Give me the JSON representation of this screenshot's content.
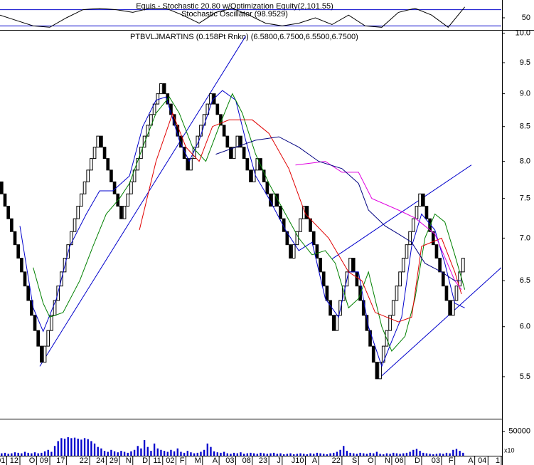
{
  "chart_data": [
    {
      "type": "line",
      "title": "Equis - Stochastic 20.80  w/Optimization Equity(2,101.55)",
      "subtitle": "Stochastic Oscillator (98.9529)",
      "xlim": [
        0,
        151
      ],
      "ylim": [
        0,
        100
      ],
      "yticks": [
        50
      ],
      "levels": [
        20,
        80
      ],
      "level_color": "#0000cc",
      "color": "#000000",
      "x": [
        0,
        5,
        10,
        15,
        20,
        25,
        30,
        35,
        40,
        45,
        50,
        55,
        60,
        65,
        70,
        75,
        80,
        85,
        90,
        95,
        100,
        105,
        110,
        115,
        120,
        125,
        130,
        135,
        140
      ],
      "values": [
        60,
        40,
        20,
        15,
        50,
        80,
        85,
        80,
        70,
        85,
        85,
        60,
        30,
        70,
        85,
        60,
        30,
        20,
        30,
        50,
        25,
        60,
        20,
        15,
        70,
        85,
        60,
        15,
        90
      ]
    },
    {
      "type": "renko",
      "title": "PTBVLJMARTINS (0.158Pt Rnko)  (6.5800,6.7500,6.5500,6.7500)",
      "log": true,
      "xlim": [
        0,
        151
      ],
      "ylim": [
        5.15,
        10.02
      ],
      "yticks": [
        {
          "value": 10,
          "label": "10.0"
        },
        {
          "value": 9.5,
          "label": "9.5"
        },
        {
          "value": 9,
          "label": "9.0"
        },
        {
          "value": 8.5,
          "label": "8.5"
        },
        {
          "value": 8,
          "label": "8.0"
        },
        {
          "value": 7.5,
          "label": "7.5"
        },
        {
          "value": 7,
          "label": "7.0"
        },
        {
          "value": 6.5,
          "label": "6.5"
        },
        {
          "value": 6,
          "label": "6.0"
        },
        {
          "value": 5.5,
          "label": "5.5"
        }
      ],
      "up_color": "#ffffff",
      "down_color": "#000000",
      "open": 7.72,
      "values": [
        7.56,
        7.4,
        7.24,
        7.08,
        6.92,
        6.76,
        6.6,
        6.44,
        6.28,
        6.12,
        5.96,
        5.8,
        5.64,
        5.8,
        5.96,
        6.12,
        6.28,
        6.44,
        6.6,
        6.76,
        6.92,
        7.08,
        7.24,
        7.4,
        7.56,
        7.72,
        7.88,
        8.04,
        8.2,
        8.36,
        8.2,
        8.04,
        7.88,
        7.72,
        7.56,
        7.4,
        7.24,
        7.4,
        7.56,
        7.72,
        7.88,
        8.04,
        8.2,
        8.36,
        8.52,
        8.68,
        8.84,
        9.0,
        9.16,
        9.0,
        8.84,
        8.68,
        8.52,
        8.36,
        8.2,
        8.04,
        7.88,
        8.04,
        8.2,
        8.36,
        8.52,
        8.68,
        8.84,
        9.0,
        8.84,
        8.68,
        8.52,
        8.36,
        8.2,
        8.04,
        8.2,
        8.36,
        8.2,
        8.04,
        7.88,
        7.72,
        7.88,
        8.04,
        7.88,
        7.72,
        7.56,
        7.4,
        7.56,
        7.4,
        7.24,
        7.08,
        6.92,
        6.76,
        6.92,
        7.08,
        7.24,
        7.4,
        7.24,
        7.08,
        6.92,
        6.76,
        6.6,
        6.44,
        6.28,
        6.12,
        5.96,
        6.12,
        6.28,
        6.44,
        6.6,
        6.76,
        6.6,
        6.44,
        6.28,
        6.12,
        5.96,
        5.8,
        5.64,
        5.48,
        5.64,
        5.8,
        5.96,
        6.12,
        6.28,
        6.44,
        6.6,
        6.76,
        6.92,
        7.08,
        7.24,
        7.4,
        7.56,
        7.4,
        7.24,
        7.08,
        6.92,
        6.76,
        6.6,
        6.44,
        6.28,
        6.12,
        6.28,
        6.44,
        6.6,
        6.76
      ],
      "overlays": [
        {
          "color": "#0000cc",
          "x": [
            6,
            10,
            13,
            17,
            21,
            26,
            30,
            34,
            39,
            43,
            47,
            50,
            54,
            57,
            60,
            64,
            67,
            71,
            74,
            77,
            81,
            86,
            90,
            94,
            98,
            102,
            105,
            108,
            111,
            115,
            118,
            121,
            124,
            127,
            131,
            134,
            137,
            140
          ],
          "values": [
            7.15,
            6.2,
            5.95,
            6.3,
            6.9,
            7.3,
            7.6,
            7.6,
            7.8,
            8.5,
            8.9,
            8.95,
            8.3,
            8.0,
            8.3,
            8.9,
            9.05,
            8.9,
            8.3,
            7.8,
            7.5,
            7.1,
            6.85,
            6.95,
            6.3,
            6.1,
            6.6,
            6.6,
            6.0,
            5.6,
            5.85,
            6.1,
            6.9,
            7.3,
            7.1,
            6.7,
            6.25,
            6.2
          ]
        },
        {
          "color": "#008000",
          "x": [
            10,
            13,
            15,
            19,
            24,
            28,
            32,
            36,
            39,
            43,
            47,
            51,
            54,
            58,
            62,
            66,
            70,
            73,
            77,
            81,
            86,
            90,
            94,
            98,
            101,
            105,
            108,
            111,
            115,
            118,
            122,
            125,
            128,
            131,
            134,
            137,
            140
          ],
          "values": [
            6.65,
            6.25,
            6.1,
            6.15,
            6.5,
            6.9,
            7.3,
            7.5,
            7.7,
            8.2,
            8.7,
            8.95,
            8.7,
            8.2,
            8.0,
            8.5,
            9.0,
            8.7,
            8.1,
            7.7,
            7.3,
            7.0,
            6.8,
            6.85,
            6.7,
            6.2,
            6.3,
            6.6,
            6.0,
            5.75,
            5.9,
            6.3,
            7.0,
            7.3,
            7.2,
            6.8,
            6.4
          ]
        },
        {
          "color": "#e00000",
          "x": [
            42,
            47,
            52,
            56,
            60,
            64,
            69,
            76,
            81,
            87,
            92,
            99,
            105,
            109,
            113,
            120,
            124,
            127,
            133,
            137,
            139
          ],
          "values": [
            7.1,
            8.0,
            8.7,
            8.2,
            8.0,
            8.5,
            8.6,
            8.6,
            8.4,
            7.9,
            7.3,
            7.0,
            6.6,
            6.5,
            6.15,
            6.05,
            6.1,
            6.9,
            7.0,
            6.6,
            6.35
          ]
        },
        {
          "color": "#e000e0",
          "x": [
            89,
            98,
            103,
            108,
            112,
            120,
            125,
            131,
            137,
            139
          ],
          "values": [
            7.95,
            8.0,
            7.85,
            7.85,
            7.5,
            7.35,
            7.25,
            7.05,
            6.5,
            6.4
          ]
        },
        {
          "color": "#000080",
          "x": [
            65,
            71,
            77,
            84,
            90,
            96,
            103,
            108,
            111,
            116,
            120,
            124,
            128,
            133,
            137,
            139
          ],
          "values": [
            8.1,
            8.2,
            8.3,
            8.35,
            8.2,
            8.0,
            7.9,
            7.7,
            7.35,
            7.15,
            7.05,
            6.95,
            6.7,
            6.6,
            6.5,
            6.5
          ]
        }
      ],
      "trendlines": [
        {
          "color": "#0000cc",
          "x": [
            12,
            74
          ],
          "values": [
            5.6,
            9.95
          ]
        },
        {
          "color": "#0000cc",
          "x": [
            114,
            151
          ],
          "values": [
            5.48,
            6.65
          ]
        },
        {
          "color": "#0000cc",
          "x": [
            100,
            142
          ],
          "values": [
            6.75,
            7.95
          ]
        }
      ]
    },
    {
      "type": "bar",
      "xlim": [
        0,
        151
      ],
      "ylim": [
        0,
        70000
      ],
      "yticks": [
        50000
      ],
      "scale_label": "x10",
      "color": "#0000cc",
      "xticks": [
        {
          "value": 2,
          "label": "01"
        },
        {
          "value": 6,
          "label": "12"
        },
        {
          "value": 11,
          "label": "O"
        },
        {
          "value": 15,
          "label": "09"
        },
        {
          "value": 20,
          "label": "17"
        },
        {
          "value": 27,
          "label": "22"
        },
        {
          "value": 32,
          "label": "24"
        },
        {
          "value": 36,
          "label": "29"
        },
        {
          "value": 40,
          "label": "N"
        },
        {
          "value": 45,
          "label": "D"
        },
        {
          "value": 49,
          "label": "11"
        },
        {
          "value": 53,
          "label": "02"
        },
        {
          "value": 56,
          "label": "F"
        },
        {
          "value": 61,
          "label": "M"
        },
        {
          "value": 66,
          "label": "A"
        },
        {
          "value": 71,
          "label": "03"
        },
        {
          "value": 76,
          "label": "08"
        },
        {
          "value": 81,
          "label": "23"
        },
        {
          "value": 85,
          "label": "J"
        },
        {
          "value": 92,
          "label": "J10"
        },
        {
          "value": 96,
          "label": "A"
        },
        {
          "value": 103,
          "label": "22"
        },
        {
          "value": 108,
          "label": "S"
        },
        {
          "value": 113,
          "label": "O"
        },
        {
          "value": 118,
          "label": "N"
        },
        {
          "value": 122,
          "label": "06"
        },
        {
          "value": 127,
          "label": "D"
        },
        {
          "value": 133,
          "label": "03"
        },
        {
          "value": 137,
          "label": "F"
        },
        {
          "value": 143,
          "label": "A"
        },
        {
          "value": 147,
          "label": "04"
        },
        {
          "value": 151,
          "label": "1"
        }
      ],
      "values": [
        5000,
        6000,
        4000,
        5000,
        7000,
        6000,
        5000,
        8000,
        6000,
        5000,
        7000,
        5000,
        6000,
        9000,
        12000,
        8000,
        20000,
        30000,
        36000,
        35000,
        38000,
        36000,
        37000,
        35000,
        33000,
        36000,
        34000,
        30000,
        25000,
        18000,
        15000,
        10000,
        8000,
        12000,
        9000,
        7000,
        10000,
        8000,
        6000,
        9000,
        12000,
        20000,
        15000,
        32000,
        18000,
        10000,
        25000,
        15000,
        12000,
        10000,
        8000,
        12000,
        9000,
        15000,
        8000,
        6000,
        10000,
        7000,
        5000,
        6000,
        8000,
        12000,
        25000,
        18000,
        9000,
        7000,
        6000,
        8000,
        5000,
        4000,
        6000,
        5000,
        7000,
        4000,
        5000,
        6000,
        5000,
        4000,
        6000,
        5000,
        4000,
        5000,
        6000,
        4000,
        5000,
        3000,
        4000,
        5000,
        3000,
        4000,
        5000,
        4000,
        3000,
        5000,
        4000,
        6000,
        5000,
        4000,
        3000,
        5000,
        6000,
        8000,
        12000,
        20000,
        10000,
        6000,
        5000,
        4000,
        6000,
        5000,
        4000,
        6000,
        5000,
        8000,
        4000,
        3000,
        5000,
        4000,
        6000,
        5000,
        4000,
        5000,
        6000,
        8000,
        12000,
        14000,
        10000,
        6000,
        5000,
        4000,
        3000,
        4000,
        5000,
        4000,
        6000,
        5000,
        12000,
        14000,
        10000,
        6000
      ]
    }
  ]
}
